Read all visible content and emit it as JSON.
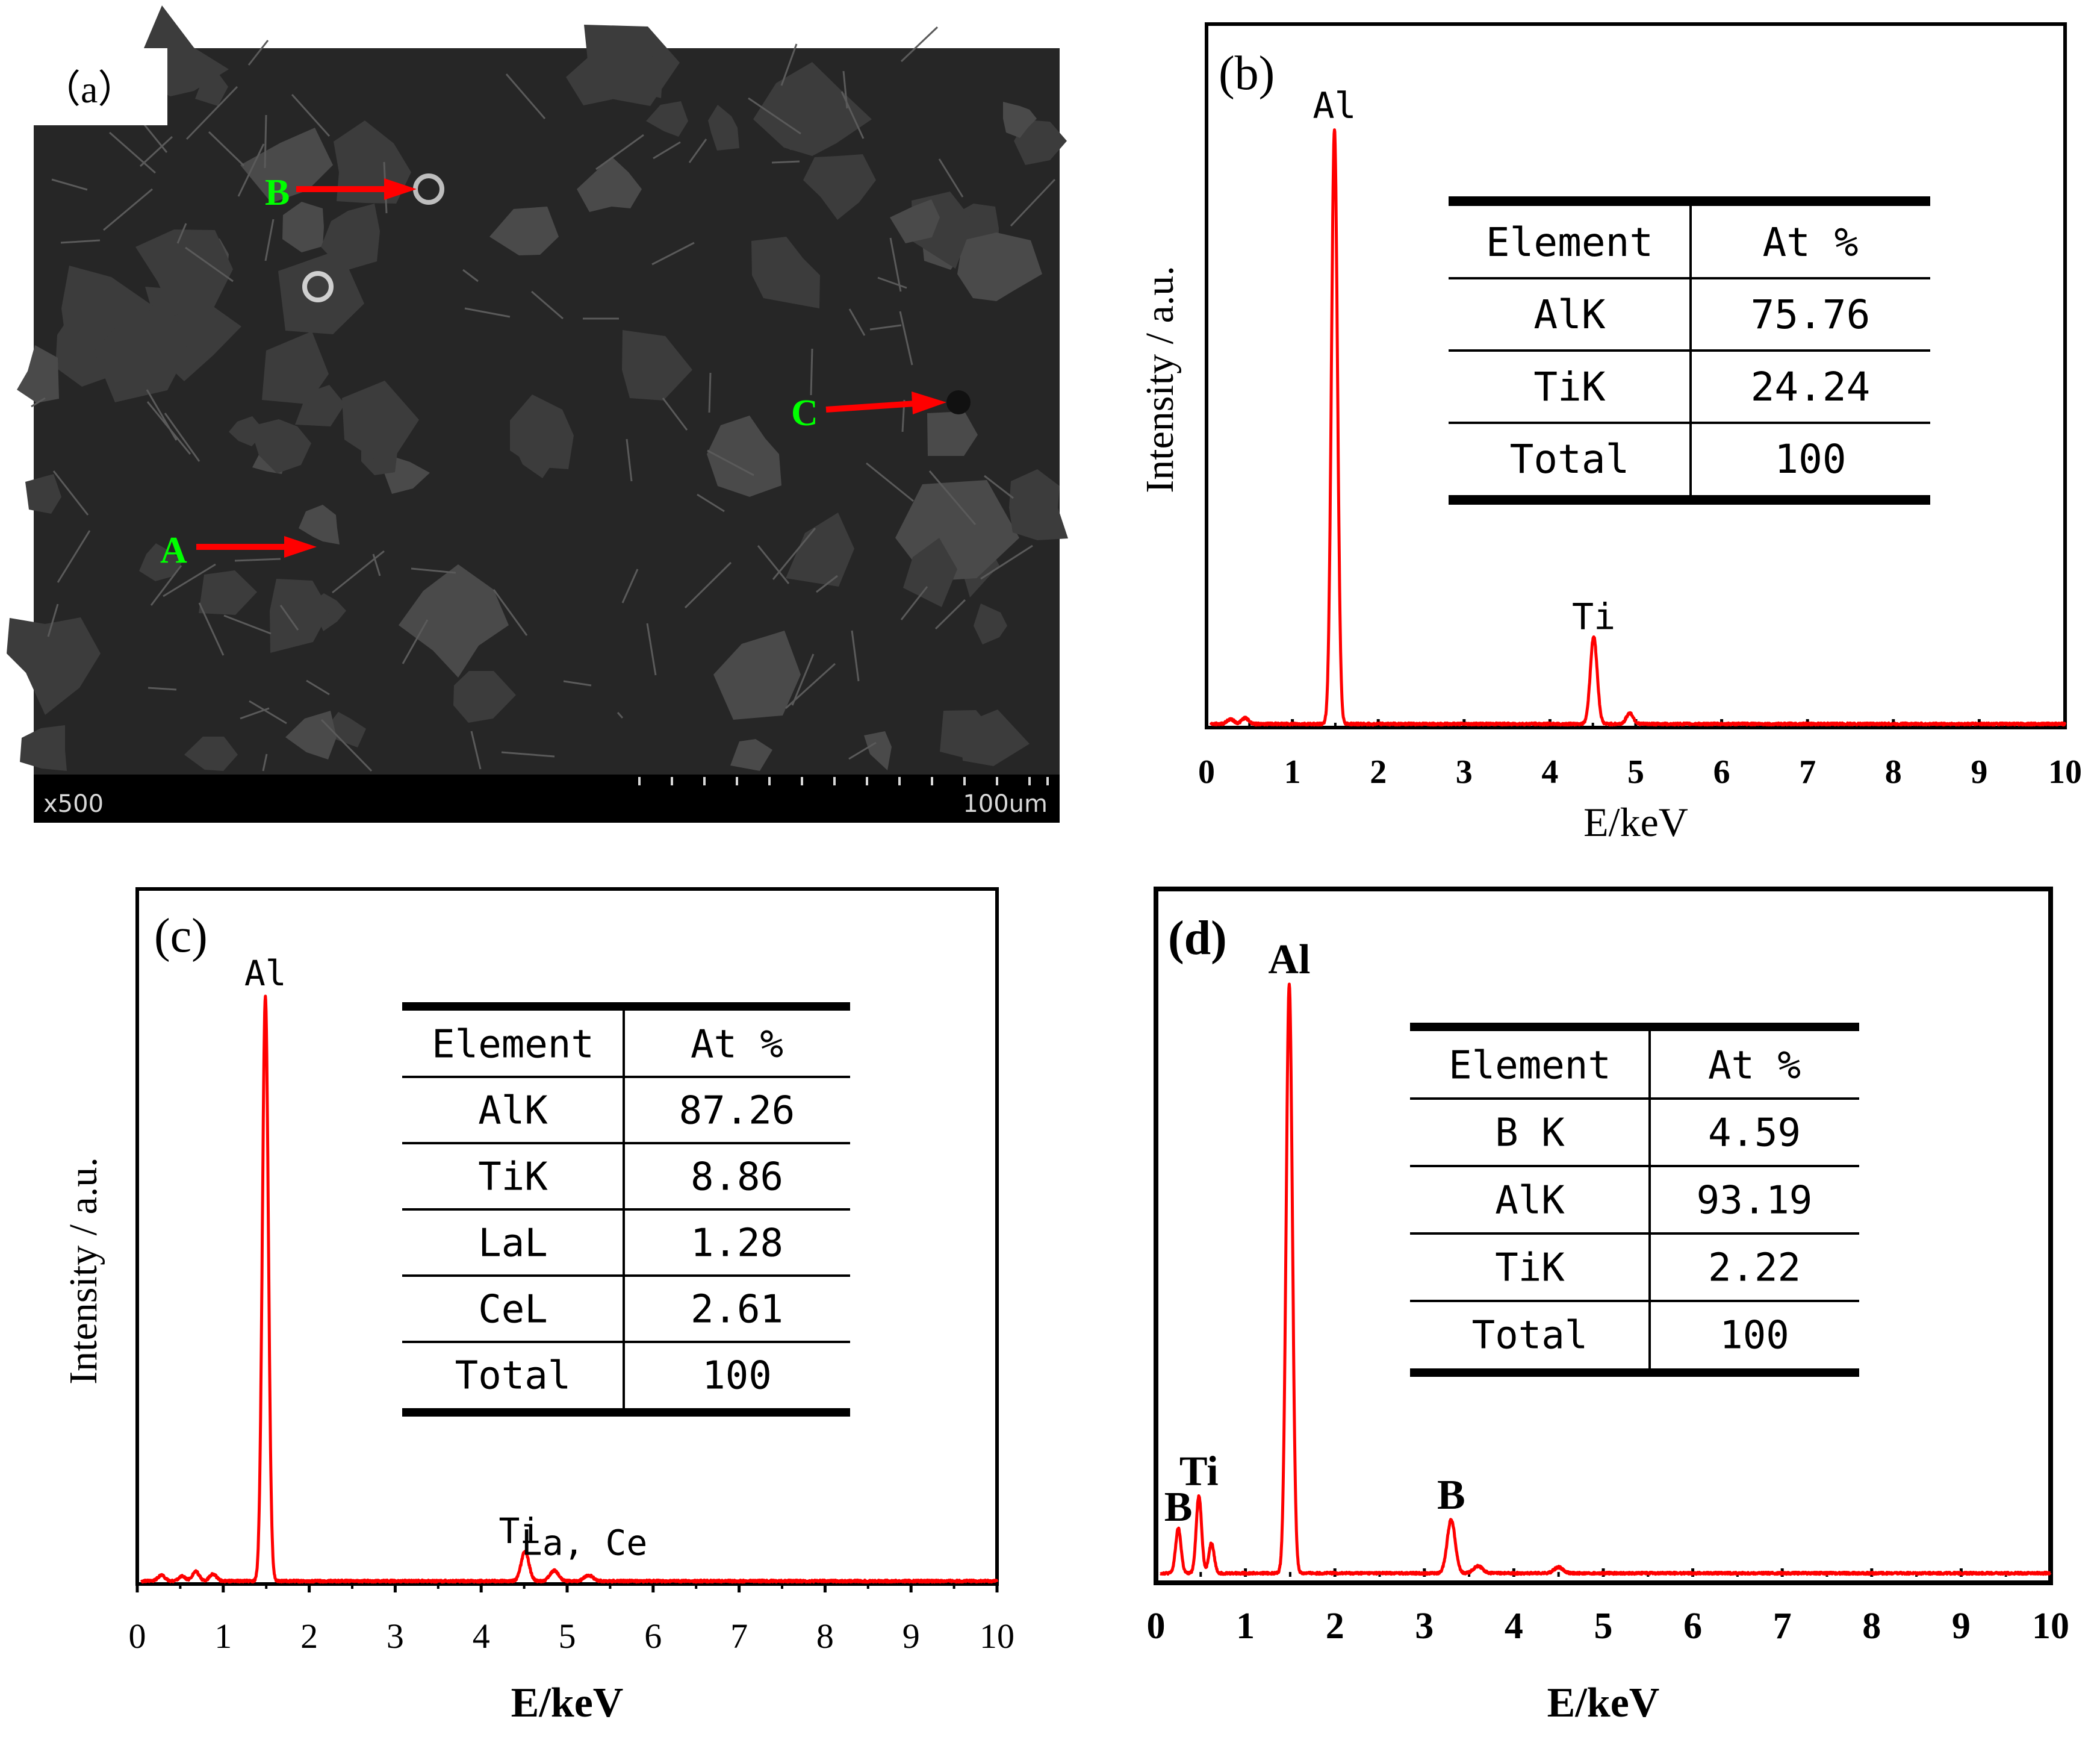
{
  "colors": {
    "spectrum": "#ff0000",
    "arrow": "#ff0000",
    "point_label": "#00ff00",
    "sem_background": "#262626",
    "axis": "#000000"
  },
  "sem": {
    "panel_label": "（a）",
    "magnification": "x500",
    "scale_bar": "100um",
    "points": [
      {
        "label": "B"
      },
      {
        "label": "C"
      },
      {
        "label": "A"
      }
    ]
  },
  "chart_data": [
    {
      "id": "b",
      "type": "line",
      "panel_label": "(b)",
      "xlabel": "E/keV",
      "ylabel": "Intensity / a.u.",
      "xlim": [
        0,
        10
      ],
      "ylim": [
        0,
        100
      ],
      "xticks": [
        "0",
        "1",
        "2",
        "3",
        "4",
        "5",
        "6",
        "7",
        "8",
        "9",
        "10"
      ],
      "peaks": [
        {
          "name": "Al",
          "x": 1.49,
          "y": 100
        },
        {
          "name": "Ti",
          "x": 4.51,
          "y": 15
        }
      ],
      "series": [
        {
          "baseline": 0.6,
          "components": [
            {
              "x": 0.28,
              "h": 0.8,
              "w": 0.04
            },
            {
              "x": 0.45,
              "h": 1.0,
              "w": 0.04
            },
            {
              "x": 1.49,
              "h": 99,
              "w": 0.035
            },
            {
              "x": 4.51,
              "h": 14.5,
              "w": 0.04
            },
            {
              "x": 4.93,
              "h": 1.8,
              "w": 0.04
            }
          ]
        }
      ],
      "peak_labels": [
        {
          "text": "Al",
          "x": 1.49,
          "y": 100
        },
        {
          "text": "Ti",
          "x": 4.51,
          "y": 15
        }
      ],
      "table": {
        "headers": [
          "Element",
          "At %"
        ],
        "rows": [
          [
            "AlK",
            "75.76"
          ],
          [
            "TiK",
            "24.24"
          ],
          [
            "Total",
            "100"
          ]
        ]
      }
    },
    {
      "id": "c",
      "type": "line",
      "panel_label": "(c)",
      "xlabel": "E/keV",
      "ylabel": "Intensity / a.u.",
      "xlim": [
        0,
        10
      ],
      "ylim": [
        0,
        100
      ],
      "xticks": [
        "0",
        "1",
        "2",
        "3",
        "4",
        "5",
        "6",
        "7",
        "8",
        "9",
        "10"
      ],
      "series": [
        {
          "baseline": 0.5,
          "components": [
            {
              "x": 0.28,
              "h": 1.0,
              "w": 0.04
            },
            {
              "x": 0.52,
              "h": 0.8,
              "w": 0.04
            },
            {
              "x": 0.68,
              "h": 1.6,
              "w": 0.04
            },
            {
              "x": 0.88,
              "h": 1.2,
              "w": 0.04
            },
            {
              "x": 1.49,
              "h": 99,
              "w": 0.035
            },
            {
              "x": 4.51,
              "h": 5.0,
              "w": 0.045
            },
            {
              "x": 4.85,
              "h": 1.8,
              "w": 0.05
            },
            {
              "x": 5.25,
              "h": 1.0,
              "w": 0.05
            }
          ]
        }
      ],
      "peak_labels": [
        {
          "text": "Al",
          "x": 1.49,
          "y": 100
        },
        {
          "text": "Ti",
          "x": 4.45,
          "y": 5.5
        },
        {
          "text": "La, Ce",
          "x": 5.2,
          "y": 3.5
        }
      ],
      "table": {
        "headers": [
          "Element",
          "At %"
        ],
        "rows": [
          [
            "AlK",
            "87.26"
          ],
          [
            "TiK",
            "8.86"
          ],
          [
            "LaL",
            "1.28"
          ],
          [
            "CeL",
            "2.61"
          ],
          [
            "Total",
            "100"
          ]
        ]
      }
    },
    {
      "id": "d",
      "type": "line",
      "panel_label": "(d)",
      "xlabel": "E/keV",
      "ylabel": "",
      "xlim": [
        0,
        10
      ],
      "ylim": [
        0,
        100
      ],
      "xticks": [
        "0",
        "1",
        "2",
        "3",
        "4",
        "5",
        "6",
        "7",
        "8",
        "9",
        "10"
      ],
      "series": [
        {
          "baseline": 0.6,
          "components": [
            {
              "x": 0.25,
              "h": 7.5,
              "w": 0.03
            },
            {
              "x": 0.48,
              "h": 13,
              "w": 0.03
            },
            {
              "x": 0.62,
              "h": 5,
              "w": 0.03
            },
            {
              "x": 1.49,
              "h": 99,
              "w": 0.035
            },
            {
              "x": 3.3,
              "h": 9,
              "w": 0.045
            },
            {
              "x": 3.6,
              "h": 1.2,
              "w": 0.05
            },
            {
              "x": 4.5,
              "h": 1.0,
              "w": 0.05
            }
          ]
        }
      ],
      "peak_labels": [
        {
          "text": "B",
          "x": 0.25,
          "y": 8
        },
        {
          "text": "Ti",
          "x": 0.48,
          "y": 14
        },
        {
          "text": "Al",
          "x": 1.49,
          "y": 100
        },
        {
          "text": "B",
          "x": 3.3,
          "y": 10
        }
      ],
      "table": {
        "headers": [
          "Element",
          "At %"
        ],
        "rows": [
          [
            "B K",
            "4.59"
          ],
          [
            "AlK",
            "93.19"
          ],
          [
            "TiK",
            "2.22"
          ],
          [
            "Total",
            "100"
          ]
        ]
      }
    }
  ]
}
